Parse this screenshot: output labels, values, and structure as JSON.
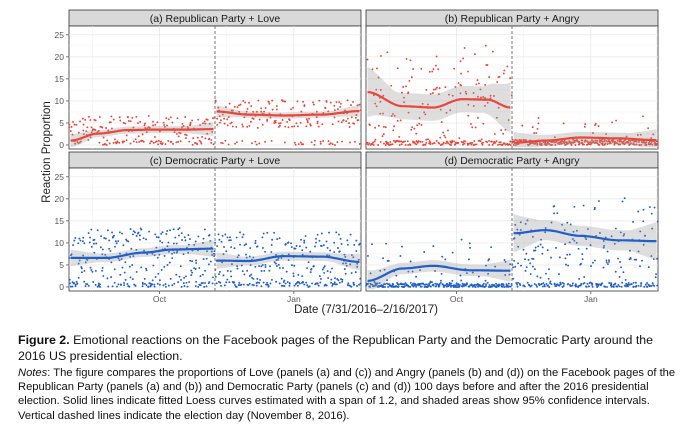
{
  "figure": {
    "ylabel": "Reaction Proportion",
    "xlabel": "Date (7/31/2016–2/16/2017)",
    "month_ticks": [
      "Oct",
      "Jan"
    ],
    "y_ticks": [
      "0",
      "5",
      "10",
      "15",
      "20",
      "25"
    ]
  },
  "caption": {
    "label": "Figure 2.",
    "title": "Emotional reactions on the Facebook pages of the Republican Party and the Democratic Party around the 2016 US presidential election.",
    "notes_label": "Notes",
    "notes": ": The figure compares the proportions of Love (panels (a) and (c)) and Angry (panels (b) and (d)) on the Facebook pages of the Republican Party (panels (a) and (b)) and Democratic Party (panels (c) and (d)) 100 days before and after the 2016 presidential election. Solid lines indicate fitted Loess curves estimated with a span of 1.2, and shaded areas show 95% confidence intervals. Vertical dashed lines indicate the election day (November 8, 2016)."
  },
  "chart_data": [
    {
      "type": "scatter",
      "title": "(a) Republican Party + Love",
      "xlabel": "Date (7/31/2016–2/16/2017)",
      "ylabel": "Reaction Proportion",
      "x_range": [
        "2016-07-31",
        "2017-02-16"
      ],
      "ylim": [
        0,
        27
      ],
      "election_day": "2016-11-08",
      "grid": true,
      "color": "#e8473a",
      "fit_pre": [
        {
          "x": "2016-08-01",
          "y": 1.0
        },
        {
          "x": "2016-08-20",
          "y": 2.6
        },
        {
          "x": "2016-09-10",
          "y": 3.4
        },
        {
          "x": "2016-10-01",
          "y": 3.5
        },
        {
          "x": "2016-10-20",
          "y": 3.5
        },
        {
          "x": "2016-11-07",
          "y": 3.6
        }
      ],
      "fit_post": [
        {
          "x": "2016-11-09",
          "y": 7.6
        },
        {
          "x": "2016-12-01",
          "y": 6.9
        },
        {
          "x": "2016-12-25",
          "y": 6.7
        },
        {
          "x": "2017-01-20",
          "y": 6.9
        },
        {
          "x": "2017-02-15",
          "y": 7.7
        }
      ],
      "ci_half_pre": 0.8,
      "ci_half_post": 0.7,
      "scatter_mean_pre": 3.5,
      "scatter_mean_post": 7.0,
      "scatter_spread": 3.2
    },
    {
      "type": "scatter",
      "title": "(b) Republican Party + Angry",
      "xlabel": "Date (7/31/2016–2/16/2017)",
      "ylabel": "Reaction Proportion",
      "x_range": [
        "2016-07-31",
        "2017-02-16"
      ],
      "ylim": [
        0,
        27
      ],
      "election_day": "2016-11-08",
      "grid": true,
      "color": "#e8473a",
      "fit_pre": [
        {
          "x": "2016-08-01",
          "y": 12.0
        },
        {
          "x": "2016-08-25",
          "y": 8.8
        },
        {
          "x": "2016-09-15",
          "y": 8.5
        },
        {
          "x": "2016-10-05",
          "y": 10.4
        },
        {
          "x": "2016-10-22",
          "y": 10.3
        },
        {
          "x": "2016-11-07",
          "y": 8.5
        }
      ],
      "fit_post": [
        {
          "x": "2016-11-09",
          "y": 0.5
        },
        {
          "x": "2016-12-01",
          "y": 1.0
        },
        {
          "x": "2016-12-25",
          "y": 1.7
        },
        {
          "x": "2017-01-20",
          "y": 1.5
        },
        {
          "x": "2017-02-15",
          "y": 1.1
        }
      ],
      "ci_half_pre": 3.0,
      "ci_half_post": 1.3,
      "scatter_mean_pre": 9.0,
      "scatter_mean_post": 1.5,
      "scatter_spread": 9.0
    },
    {
      "type": "scatter",
      "title": "(c) Democratic Party + Love",
      "xlabel": "Date (7/31/2016–2/16/2017)",
      "ylabel": "Reaction Proportion",
      "x_range": [
        "2016-07-31",
        "2017-02-16"
      ],
      "ylim": [
        0,
        27
      ],
      "election_day": "2016-11-08",
      "grid": true,
      "color": "#1f5fc9",
      "fit_pre": [
        {
          "x": "2016-08-01",
          "y": 6.6
        },
        {
          "x": "2016-08-25",
          "y": 6.6
        },
        {
          "x": "2016-09-20",
          "y": 7.8
        },
        {
          "x": "2016-10-10",
          "y": 8.5
        },
        {
          "x": "2016-11-07",
          "y": 8.7
        }
      ],
      "fit_post": [
        {
          "x": "2016-11-09",
          "y": 6.0
        },
        {
          "x": "2016-12-01",
          "y": 5.9
        },
        {
          "x": "2016-12-25",
          "y": 7.0
        },
        {
          "x": "2017-01-20",
          "y": 6.9
        },
        {
          "x": "2017-02-15",
          "y": 5.7
        }
      ],
      "ci_half_pre": 1.0,
      "ci_half_post": 1.0,
      "scatter_mean_pre": 7.5,
      "scatter_mean_post": 6.5,
      "scatter_spread": 6.0
    },
    {
      "type": "scatter",
      "title": "(d) Democratic Party + Angry",
      "xlabel": "Date (7/31/2016–2/16/2017)",
      "ylabel": "Reaction Proportion",
      "x_range": [
        "2016-07-31",
        "2017-02-16"
      ],
      "ylim": [
        0,
        27
      ],
      "election_day": "2016-11-08",
      "grid": true,
      "color": "#1f5fc9",
      "fit_pre": [
        {
          "x": "2016-08-01",
          "y": 1.4
        },
        {
          "x": "2016-08-25",
          "y": 4.2
        },
        {
          "x": "2016-09-15",
          "y": 4.8
        },
        {
          "x": "2016-10-10",
          "y": 3.8
        },
        {
          "x": "2016-11-07",
          "y": 3.7
        }
      ],
      "fit_post": [
        {
          "x": "2016-11-09",
          "y": 12.2
        },
        {
          "x": "2016-12-01",
          "y": 12.9
        },
        {
          "x": "2016-12-25",
          "y": 11.6
        },
        {
          "x": "2017-01-20",
          "y": 10.6
        },
        {
          "x": "2017-02-15",
          "y": 10.4
        }
      ],
      "ci_half_pre": 1.3,
      "ci_half_post": 2.3,
      "scatter_mean_pre": 2.5,
      "scatter_mean_post": 8.0,
      "scatter_spread": 9.0
    }
  ]
}
